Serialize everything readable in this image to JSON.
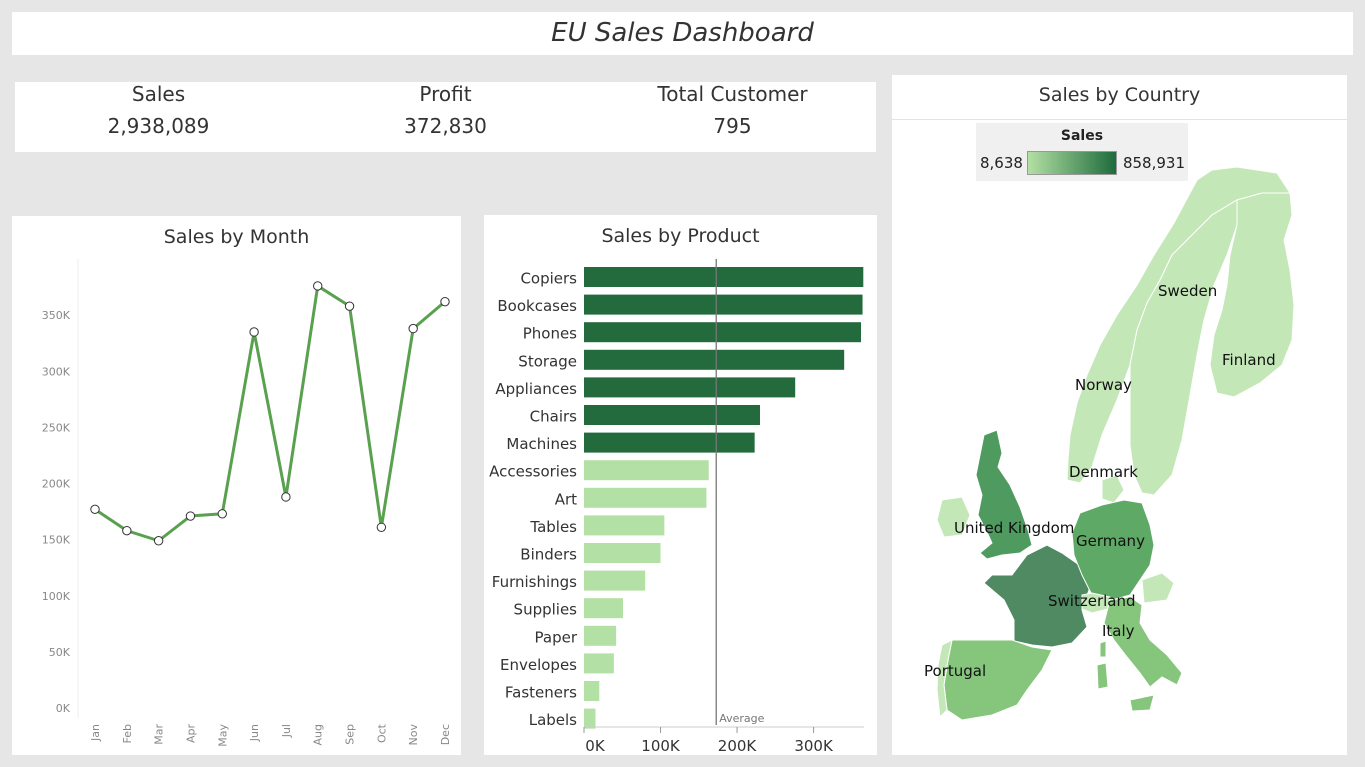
{
  "dashboard": {
    "title": "EU Sales Dashboard"
  },
  "kpis": [
    {
      "label": "Sales",
      "value": "2,938,089"
    },
    {
      "label": "Profit",
      "value": "372,830"
    },
    {
      "label": "Total Customer",
      "value": "795"
    }
  ],
  "colors": {
    "line": "#59a14f",
    "bar_high": "#236b3d",
    "bar_low": "#b3e0a4",
    "ref_line": "#777777"
  },
  "chart_data": [
    {
      "type": "line",
      "title": "Sales by Month",
      "categories": [
        "Jan",
        "Feb",
        "Mar",
        "Apr",
        "May",
        "Jun",
        "Jul",
        "Aug",
        "Sep",
        "Oct",
        "Nov",
        "Dec"
      ],
      "values": [
        177000,
        158000,
        149000,
        171000,
        173000,
        335000,
        188000,
        376000,
        358000,
        161000,
        338000,
        362000
      ],
      "y_ticks": [
        0,
        50000,
        100000,
        150000,
        200000,
        250000,
        300000,
        350000
      ],
      "y_tick_labels": [
        "0K",
        "50K",
        "100K",
        "150K",
        "200K",
        "250K",
        "300K",
        "350K"
      ],
      "ylim": [
        0,
        400000
      ],
      "grid": false
    },
    {
      "type": "bar",
      "orientation": "horizontal",
      "title": "Sales by Product",
      "categories": [
        "Copiers",
        "Bookcases",
        "Phones",
        "Storage",
        "Appliances",
        "Chairs",
        "Machines",
        "Accessories",
        "Art",
        "Tables",
        "Binders",
        "Furnishings",
        "Supplies",
        "Paper",
        "Envelopes",
        "Fasteners",
        "Labels"
      ],
      "values": [
        365000,
        364000,
        362000,
        340000,
        276000,
        230000,
        223000,
        163000,
        160000,
        105000,
        100000,
        80000,
        51000,
        42000,
        39000,
        20000,
        15000
      ],
      "above_average": [
        true,
        true,
        true,
        true,
        true,
        true,
        true,
        false,
        false,
        false,
        false,
        false,
        false,
        false,
        false,
        false,
        false
      ],
      "reference_line": {
        "label": "Average",
        "value": 172800
      },
      "x_ticks": [
        0,
        100000,
        200000,
        300000
      ],
      "x_tick_labels": [
        "0K",
        "100K",
        "200K",
        "300K"
      ],
      "xlim": [
        0,
        380000
      ]
    },
    {
      "type": "map",
      "title": "Sales by Country",
      "legend": {
        "title": "Sales",
        "min": "8,638",
        "max": "858,931",
        "placement": "top"
      },
      "countries": [
        {
          "name": "Sweden",
          "color": "#c4e7b8"
        },
        {
          "name": "Finland",
          "color": "#c4e7b8"
        },
        {
          "name": "Norway",
          "color": "#c4e7b8"
        },
        {
          "name": "Denmark",
          "color": "#c4e7b8"
        },
        {
          "name": "United Kingdom",
          "color": "#4f9a5e"
        },
        {
          "name": "Germany",
          "color": "#5fa966"
        },
        {
          "name": "Switzerland",
          "color": "#c4e7b8"
        },
        {
          "name": "Italy",
          "color": "#86c57c"
        },
        {
          "name": "Portugal",
          "color": "#c4e7b8"
        }
      ]
    }
  ]
}
